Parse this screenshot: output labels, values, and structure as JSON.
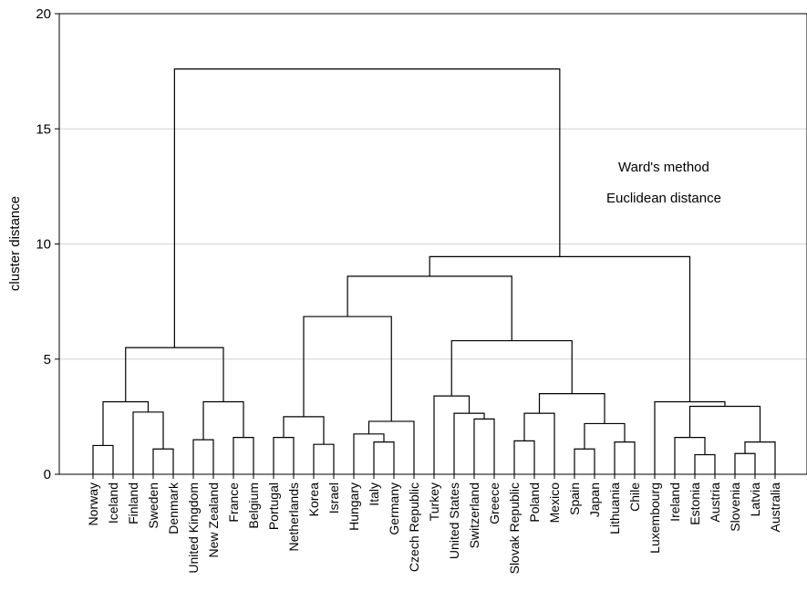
{
  "chart_data": {
    "type": "dendrogram",
    "title": "",
    "ylabel": "cluster distance",
    "xlabel": "",
    "ylim": [
      0,
      20
    ],
    "yticks": [
      0,
      5,
      10,
      15,
      20
    ],
    "grid": true,
    "annotations": [
      "Ward's method",
      "Euclidean distance"
    ],
    "leaves": [
      "Norway",
      "Iceland",
      "Finland",
      "Sweden",
      "Denmark",
      "United Kingdom",
      "New Zealand",
      "France",
      "Belgium",
      "Portugal",
      "Netherlands",
      "Korea",
      "Israel",
      "Hungary",
      "Italy",
      "Germany",
      "Czech Republic",
      "Turkey",
      "United States",
      "Switzerland",
      "Greece",
      "Slovak Republic",
      "Poland",
      "Mexico",
      "Spain",
      "Japan",
      "Lithuania",
      "Chile",
      "Luxembourg",
      "Ireland",
      "Estonia",
      "Austria",
      "Slovenia",
      "Latvia",
      "Australia"
    ],
    "merges": [
      {
        "left": 0,
        "right": 1,
        "height": 1.25
      },
      {
        "left": 3,
        "right": 4,
        "height": 1.1
      },
      {
        "left": 2,
        "right": "m1",
        "height": 2.7
      },
      {
        "left": "m0",
        "right": "m2",
        "height": 3.15
      },
      {
        "left": 5,
        "right": 6,
        "height": 1.5
      },
      {
        "left": 7,
        "right": 8,
        "height": 1.6
      },
      {
        "left": "m4",
        "right": "m5",
        "height": 3.15
      },
      {
        "left": "m3",
        "right": "m6",
        "height": 5.5
      },
      {
        "left": 9,
        "right": 10,
        "height": 1.6
      },
      {
        "left": 11,
        "right": 12,
        "height": 1.3
      },
      {
        "left": "m8",
        "right": "m9",
        "height": 2.5
      },
      {
        "left": 14,
        "right": 15,
        "height": 1.4
      },
      {
        "left": 13,
        "right": "m11",
        "height": 1.75
      },
      {
        "left": "m12",
        "right": 16,
        "height": 2.3
      },
      {
        "left": "m10",
        "right": "m13",
        "height": 6.85
      },
      {
        "left": 19,
        "right": 20,
        "height": 2.4
      },
      {
        "left": 18,
        "right": "m15",
        "height": 2.65
      },
      {
        "left": 17,
        "right": "m16",
        "height": 3.4
      },
      {
        "left": 21,
        "right": 22,
        "height": 1.45
      },
      {
        "left": "m18",
        "right": 23,
        "height": 2.65
      },
      {
        "left": 24,
        "right": 25,
        "height": 1.1
      },
      {
        "left": 26,
        "right": 27,
        "height": 1.4
      },
      {
        "left": "m20",
        "right": "m21",
        "height": 2.2
      },
      {
        "left": "m19",
        "right": "m22",
        "height": 3.5
      },
      {
        "left": "m17",
        "right": "m23",
        "height": 5.8
      },
      {
        "left": "m14",
        "right": "m24",
        "height": 8.6
      },
      {
        "left": 30,
        "right": 31,
        "height": 0.85
      },
      {
        "left": 29,
        "right": "m26",
        "height": 1.6
      },
      {
        "left": 32,
        "right": 33,
        "height": 0.9
      },
      {
        "left": "m28",
        "right": 34,
        "height": 1.4
      },
      {
        "left": "m27",
        "right": "m29",
        "height": 2.95
      },
      {
        "left": 28,
        "right": "m30",
        "height": 3.15
      },
      {
        "left": "m25",
        "right": "m31",
        "height": 9.45
      },
      {
        "left": "m7",
        "right": "m32",
        "height": 17.6
      }
    ]
  }
}
